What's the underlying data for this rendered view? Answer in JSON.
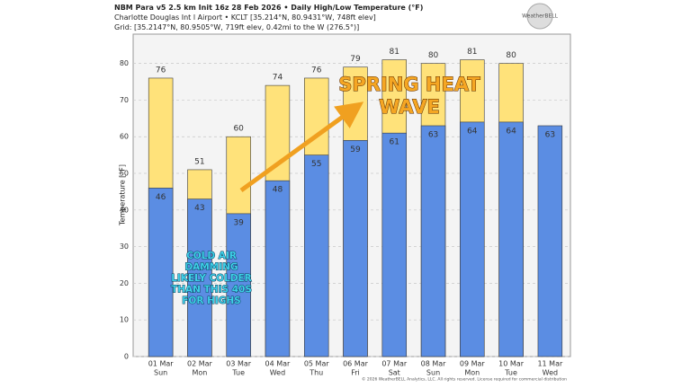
{
  "header": {
    "lines": [
      "NBM Para v5 2.5 km Init 16z 28 Feb 2026 • Daily High/Low Temperature (°F)",
      "Charlotte Douglas Int l Airport • KCLT [35.214°N, 80.9431°W, 748ft elev]",
      "Grid: [35.2147°N, 80.9505°W, 719ft elev, 0.42mi to the W (276.5°)]"
    ],
    "logo": "WeatherBELL"
  },
  "chart_data": {
    "type": "bar",
    "categories": [
      "01 Mar",
      "02 Mar",
      "03 Mar",
      "04 Mar",
      "05 Mar",
      "06 Mar",
      "07 Mar",
      "08 Mar",
      "09 Mar",
      "10 Mar",
      "11 Mar"
    ],
    "weekdays": [
      "Sun",
      "Mon",
      "Tue",
      "Wed",
      "Thu",
      "Fri",
      "Sat",
      "Sun",
      "Mon",
      "Tue",
      "Wed"
    ],
    "series": [
      {
        "name": "High",
        "color": "#ffe27a",
        "values": [
          76,
          51,
          60,
          74,
          76,
          79,
          81,
          80,
          81,
          80,
          null
        ]
      },
      {
        "name": "Low",
        "color": "#5b8de3",
        "values": [
          46,
          43,
          39,
          48,
          55,
          59,
          61,
          63,
          64,
          64,
          63
        ]
      }
    ],
    "ylabel": "Temperature [°F]",
    "ylim": [
      0,
      88
    ],
    "yticks": [
      0,
      10,
      20,
      30,
      40,
      50,
      60,
      70,
      80
    ],
    "grid": true,
    "annotations": [
      {
        "lines": [
          "SPRING HEAT",
          "WAVE"
        ]
      },
      {
        "lines": [
          "COLD AIR",
          "DAMMING",
          "LIKELY COLDER",
          "THAN THIS 40S",
          "FOR HIGHS"
        ]
      }
    ],
    "footer": "© 2026 WeatherBELL Analytics, LLC. All rights reserved. License required for commercial distribution"
  }
}
